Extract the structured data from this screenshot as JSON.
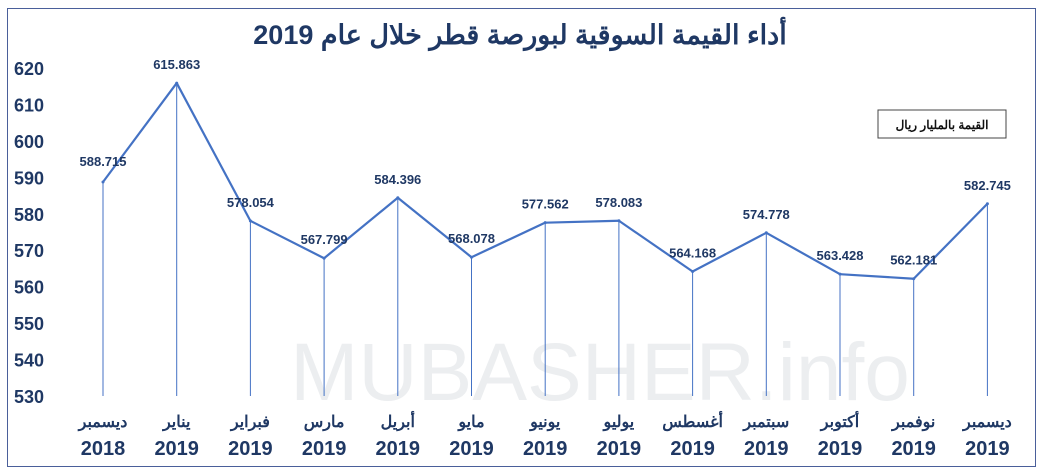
{
  "chart_data": {
    "type": "line",
    "title": "أداء القيمة السوقية لبورصة قطر خلال عام 2019",
    "legend": "القيمة بالمليار ريال",
    "legend_position": "top-right",
    "ylim": [
      530,
      620
    ],
    "yticks": [
      530,
      540,
      550,
      560,
      570,
      580,
      590,
      600,
      610,
      620
    ],
    "grid": false,
    "categories": [
      {
        "month": "ديسمبر",
        "year": "2018"
      },
      {
        "month": "يناير",
        "year": "2019"
      },
      {
        "month": "فبراير",
        "year": "2019"
      },
      {
        "month": "مارس",
        "year": "2019"
      },
      {
        "month": "أبريل",
        "year": "2019"
      },
      {
        "month": "مايو",
        "year": "2019"
      },
      {
        "month": "يونيو",
        "year": "2019"
      },
      {
        "month": "يوليو",
        "year": "2019"
      },
      {
        "month": "أغسطس",
        "year": "2019"
      },
      {
        "month": "سبتمبر",
        "year": "2019"
      },
      {
        "month": "أكتوبر",
        "year": "2019"
      },
      {
        "month": "نوفمبر",
        "year": "2019"
      },
      {
        "month": "ديسمبر",
        "year": "2019"
      }
    ],
    "values": [
      588.715,
      615.863,
      578.054,
      567.799,
      584.396,
      568.078,
      577.562,
      578.083,
      564.168,
      574.778,
      563.428,
      562.181,
      582.745
    ],
    "value_labels": [
      "588.715",
      "615.863",
      "578.054",
      "567.799",
      "584.396",
      "568.078",
      "577.562",
      "578.083",
      "564.168",
      "574.778",
      "563.428",
      "562.181",
      "582.745"
    ],
    "line_color": "#4472C4",
    "text_color": "#1F3864"
  },
  "watermark": "MUBASHER.info"
}
